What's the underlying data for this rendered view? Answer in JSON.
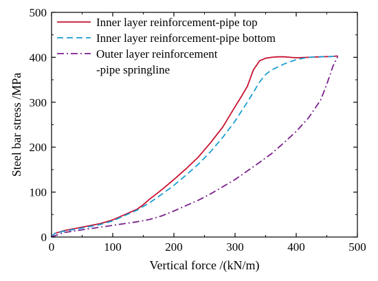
{
  "chart_data": {
    "type": "line",
    "title": "",
    "xlabel": "Vertical force /(kN/m)",
    "ylabel": "Steel bar stress /MPa",
    "xlim": [
      0,
      500
    ],
    "ylim": [
      0,
      500
    ],
    "xticks": [
      0,
      100,
      200,
      300,
      400,
      500
    ],
    "yticks": [
      0,
      100,
      200,
      300,
      400,
      500
    ],
    "grid": false,
    "legend_position": "top-left",
    "series": [
      {
        "name": "Inner layer reinforcement-pipe top",
        "color": "#c8102e",
        "dash": "solid",
        "x": [
          0,
          5,
          20,
          50,
          80,
          100,
          120,
          140,
          150,
          160,
          180,
          200,
          220,
          240,
          260,
          280,
          300,
          310,
          320,
          330,
          340,
          350,
          360,
          370,
          380,
          390,
          400,
          420,
          440,
          460,
          468
        ],
        "y": [
          0,
          8,
          14,
          22,
          30,
          38,
          50,
          62,
          72,
          84,
          105,
          128,
          152,
          178,
          210,
          245,
          290,
          312,
          335,
          372,
          392,
          398,
          400,
          401,
          401,
          400,
          399,
          400,
          401,
          402,
          403
        ]
      },
      {
        "name": "Inner layer reinforcement-pipe bottom",
        "color": "#1a9ed4",
        "dash": "dashed",
        "x": [
          0,
          5,
          20,
          50,
          80,
          100,
          120,
          140,
          150,
          160,
          180,
          200,
          220,
          240,
          260,
          280,
          300,
          320,
          330,
          340,
          350,
          360,
          380,
          400,
          420,
          440,
          460,
          468
        ],
        "y": [
          0,
          8,
          13,
          20,
          28,
          36,
          48,
          60,
          68,
          76,
          95,
          115,
          138,
          162,
          190,
          222,
          258,
          300,
          322,
          345,
          362,
          372,
          385,
          395,
          400,
          401,
          402,
          403
        ]
      },
      {
        "name": "Outer layer reinforcement\n-pipe springline",
        "color": "#7a1f8c",
        "dash": "dashdot",
        "x": [
          0,
          10,
          20,
          40,
          60,
          80,
          100,
          120,
          140,
          160,
          180,
          200,
          220,
          240,
          260,
          280,
          300,
          320,
          340,
          360,
          380,
          400,
          420,
          440,
          450,
          460,
          468
        ],
        "y": [
          0,
          5,
          10,
          14,
          18,
          22,
          26,
          30,
          34,
          39,
          47,
          58,
          70,
          82,
          96,
          112,
          128,
          147,
          166,
          186,
          210,
          235,
          265,
          305,
          340,
          380,
          402
        ]
      }
    ]
  }
}
